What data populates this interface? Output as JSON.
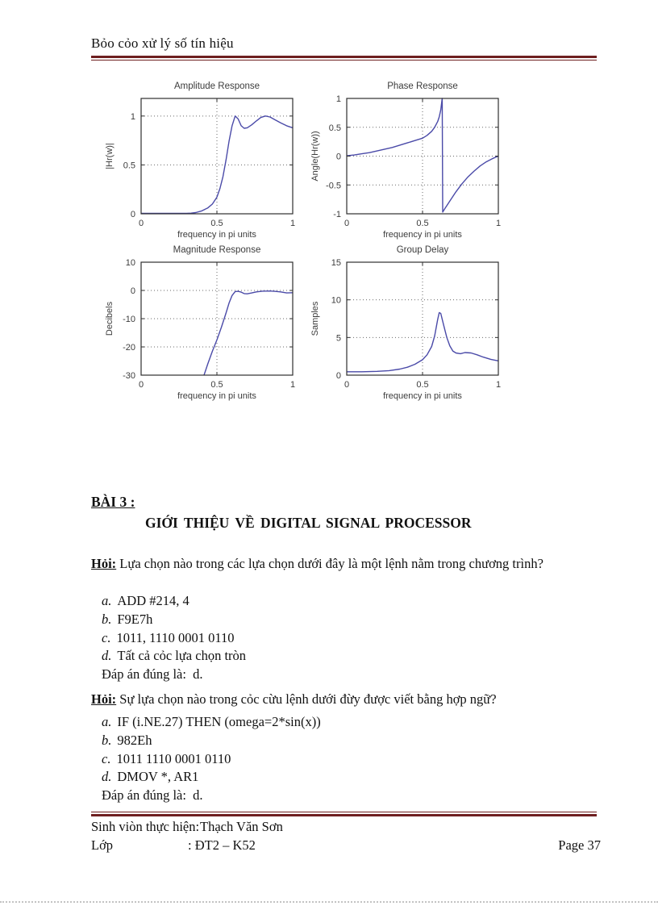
{
  "header": {
    "title": "Bỏo cỏo xử lý số tín hiệu"
  },
  "section": {
    "heading": "BÀI 3 :",
    "subheading": "GIỚI THIỆU VỀ DIGITAL SIGNAL PROCESSOR"
  },
  "questions": [
    {
      "label": "Hỏi:",
      "text": " Lựa chọn nào trong các lựa chọn dưới đây là một lệnh nằm trong chương trình?",
      "options": [
        {
          "letter": "a.",
          "text": "ADD #214, 4"
        },
        {
          "letter": "b.",
          "text": "F9E7h"
        },
        {
          "letter": "c.",
          "text": "1011, 1110 0001 0110"
        },
        {
          "letter": "d.",
          "text": "Tất cả cỏc lựa chọn tròn"
        }
      ],
      "answer": "Đáp án đúng là:  d."
    },
    {
      "label": "Hỏi:",
      "text": " Sự lựa chọn nào trong cỏc cừu lệnh dưới đừy được viết bằng hợp ngữ?",
      "options": [
        {
          "letter": "a.",
          "text": "IF (i.NE.27)  THEN  (omega=2*sin(x))"
        },
        {
          "letter": "b.",
          "text": "982Eh"
        },
        {
          "letter": "c.",
          "text": "1011  1110 0001  0110"
        },
        {
          "letter": "d.",
          "text": "DMOV *, AR1"
        }
      ],
      "answer": "Đáp án đúng là:  d."
    }
  ],
  "footer": {
    "line1_label": "Sinh viòn thực hiện:",
    "line1_value": "Thạch Văn Sơn",
    "line2_label": "Lớp",
    "line2_value": ": ĐT2 – K52",
    "page_number": "Page 37"
  },
  "colors": {
    "accent_rule": "#6e1f20",
    "curve": "#4a4aa8",
    "axis": "#2e2e2e",
    "grid": "#6a6a6a",
    "plot_text": "#3c3c3c"
  },
  "chart_data": [
    {
      "type": "line",
      "title": "Amplitude Response",
      "xlabel": "frequency in pi units",
      "ylabel": "|Hr(w)|",
      "xlim": [
        0,
        1
      ],
      "ylim": [
        0,
        1.18
      ],
      "xticks": [
        0,
        0.5,
        1
      ],
      "yticks": [
        0,
        0.5,
        1
      ],
      "grid_x": [
        0.5
      ],
      "grid_y": [
        0.5,
        1
      ],
      "series": [
        {
          "name": "amplitude",
          "points": [
            [
              0,
              0.004
            ],
            [
              0.1,
              0.004
            ],
            [
              0.2,
              0.004
            ],
            [
              0.3,
              0.005
            ],
            [
              0.33,
              0.007
            ],
            [
              0.36,
              0.012
            ],
            [
              0.4,
              0.03
            ],
            [
              0.44,
              0.06
            ],
            [
              0.47,
              0.1
            ],
            [
              0.5,
              0.17
            ],
            [
              0.52,
              0.26
            ],
            [
              0.54,
              0.38
            ],
            [
              0.56,
              0.55
            ],
            [
              0.58,
              0.74
            ],
            [
              0.6,
              0.9
            ],
            [
              0.62,
              1.0
            ],
            [
              0.64,
              0.97
            ],
            [
              0.66,
              0.9
            ],
            [
              0.68,
              0.875
            ],
            [
              0.7,
              0.88
            ],
            [
              0.73,
              0.91
            ],
            [
              0.76,
              0.95
            ],
            [
              0.79,
              0.985
            ],
            [
              0.82,
              1.0
            ],
            [
              0.85,
              0.99
            ],
            [
              0.88,
              0.965
            ],
            [
              0.92,
              0.93
            ],
            [
              0.96,
              0.9
            ],
            [
              1,
              0.88
            ]
          ]
        }
      ]
    },
    {
      "type": "line",
      "title": "Phase Response",
      "xlabel": "frequency in pi units",
      "ylabel": "Angle(Hr(w))",
      "xlim": [
        0,
        1
      ],
      "ylim": [
        -1,
        1
      ],
      "xticks": [
        0,
        0.5,
        1
      ],
      "yticks": [
        -1,
        -0.5,
        0,
        0.5,
        1
      ],
      "grid_x": [
        0.5
      ],
      "grid_y": [
        -0.5,
        0,
        0.5
      ],
      "series": [
        {
          "name": "phase",
          "points": [
            [
              0,
              0.005
            ],
            [
              0.05,
              0.02
            ],
            [
              0.1,
              0.04
            ],
            [
              0.15,
              0.06
            ],
            [
              0.2,
              0.09
            ],
            [
              0.25,
              0.12
            ],
            [
              0.3,
              0.15
            ],
            [
              0.35,
              0.19
            ],
            [
              0.4,
              0.23
            ],
            [
              0.45,
              0.27
            ],
            [
              0.5,
              0.31
            ],
            [
              0.53,
              0.36
            ],
            [
              0.56,
              0.43
            ],
            [
              0.58,
              0.5
            ],
            [
              0.6,
              0.6
            ],
            [
              0.61,
              0.68
            ],
            [
              0.62,
              0.8
            ],
            [
              0.628,
              0.97
            ],
            [
              0.63,
              1.0
            ],
            [
              0.633,
              -0.97
            ],
            [
              0.65,
              -0.9
            ],
            [
              0.68,
              -0.78
            ],
            [
              0.72,
              -0.62
            ],
            [
              0.76,
              -0.48
            ],
            [
              0.8,
              -0.36
            ],
            [
              0.84,
              -0.26
            ],
            [
              0.88,
              -0.17
            ],
            [
              0.92,
              -0.1
            ],
            [
              0.96,
              -0.045
            ],
            [
              1,
              0
            ]
          ]
        }
      ]
    },
    {
      "type": "line",
      "title": "Magnitude Response",
      "xlabel": "frequency in pi units",
      "ylabel": "Decibels",
      "xlim": [
        0,
        1
      ],
      "ylim": [
        -30,
        10
      ],
      "xticks": [
        0,
        0.5,
        1
      ],
      "yticks": [
        -30,
        -20,
        -10,
        0,
        10
      ],
      "grid_x": [
        0.5
      ],
      "grid_y": [
        -20,
        -10,
        0
      ],
      "series": [
        {
          "name": "magnitude_db",
          "points": [
            [
              0.415,
              -30
            ],
            [
              0.44,
              -26
            ],
            [
              0.47,
              -21.5
            ],
            [
              0.5,
              -17.5
            ],
            [
              0.53,
              -13
            ],
            [
              0.56,
              -8
            ],
            [
              0.58,
              -4.5
            ],
            [
              0.6,
              -1.8
            ],
            [
              0.62,
              -0.4
            ],
            [
              0.64,
              -0.3
            ],
            [
              0.66,
              -0.6
            ],
            [
              0.68,
              -1.1
            ],
            [
              0.7,
              -1.2
            ],
            [
              0.73,
              -0.9
            ],
            [
              0.76,
              -0.5
            ],
            [
              0.8,
              -0.25
            ],
            [
              0.85,
              -0.2
            ],
            [
              0.88,
              -0.3
            ],
            [
              0.92,
              -0.5
            ],
            [
              0.96,
              -0.9
            ],
            [
              1,
              -0.8
            ]
          ]
        }
      ]
    },
    {
      "type": "line",
      "title": "Group Delay",
      "xlabel": "frequency in pi units",
      "ylabel": "Samples",
      "xlim": [
        0,
        1
      ],
      "ylim": [
        0,
        15
      ],
      "xticks": [
        0,
        0.5,
        1
      ],
      "yticks": [
        0,
        5,
        10,
        15
      ],
      "grid_x": [
        0.5
      ],
      "grid_y": [
        5,
        10
      ],
      "series": [
        {
          "name": "group_delay",
          "points": [
            [
              0,
              0.45
            ],
            [
              0.1,
              0.45
            ],
            [
              0.2,
              0.5
            ],
            [
              0.28,
              0.6
            ],
            [
              0.35,
              0.8
            ],
            [
              0.4,
              1.05
            ],
            [
              0.45,
              1.45
            ],
            [
              0.5,
              2.05
            ],
            [
              0.53,
              2.7
            ],
            [
              0.56,
              3.8
            ],
            [
              0.58,
              5.2
            ],
            [
              0.6,
              7.4
            ],
            [
              0.61,
              8.3
            ],
            [
              0.62,
              8.2
            ],
            [
              0.64,
              6.6
            ],
            [
              0.66,
              5.0
            ],
            [
              0.68,
              3.9
            ],
            [
              0.7,
              3.2
            ],
            [
              0.72,
              2.95
            ],
            [
              0.75,
              2.85
            ],
            [
              0.78,
              3.0
            ],
            [
              0.82,
              2.95
            ],
            [
              0.86,
              2.7
            ],
            [
              0.9,
              2.4
            ],
            [
              0.95,
              2.1
            ],
            [
              1,
              1.9
            ]
          ]
        }
      ]
    }
  ]
}
